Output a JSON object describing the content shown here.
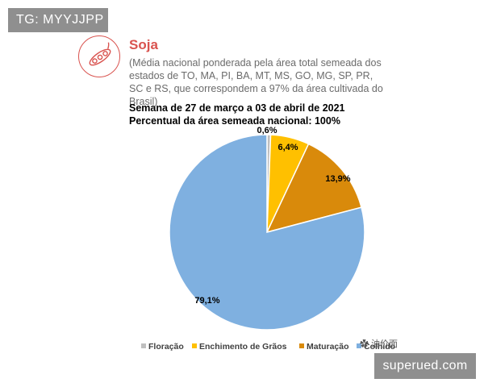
{
  "overlay": {
    "top_tag": "TG: MYYJJPP",
    "bottom_tag": "superued.com",
    "watermark": "油价面"
  },
  "header": {
    "crop": "Soja",
    "description": "(Média nacional ponderada pela área total semeada dos estados de TO, MA, PI, BA, MT, MS, GO, MG, SP, PR, SC e RS, que correspondem a 97% da área cultivada do Brasil)",
    "week": "Semana de 27 de março a 03 de abril de 2021",
    "area_percent": "Percentual da área semeada nacional: 100%"
  },
  "icons": {
    "logo": "soybean-pod-icon"
  },
  "colors": {
    "accent": "#d9534f",
    "floracao": "#bfbfbf",
    "enchimento": "#ffc000",
    "maturacao": "#d98a0b",
    "colhido": "#7fb0e0"
  },
  "chart_data": {
    "type": "pie",
    "title": "",
    "slices": [
      {
        "name": "Floração",
        "value": 0.6,
        "label": "0,6%",
        "color": "#bfbfbf"
      },
      {
        "name": "Enchimento de Grãos",
        "value": 6.4,
        "label": "6,4%",
        "color": "#ffc000"
      },
      {
        "name": "Maturação",
        "value": 13.9,
        "label": "13,9%",
        "color": "#d98a0b"
      },
      {
        "name": "Colhido",
        "value": 79.1,
        "label": "79,1%",
        "color": "#7fb0e0"
      }
    ],
    "legend_position": "bottom"
  }
}
